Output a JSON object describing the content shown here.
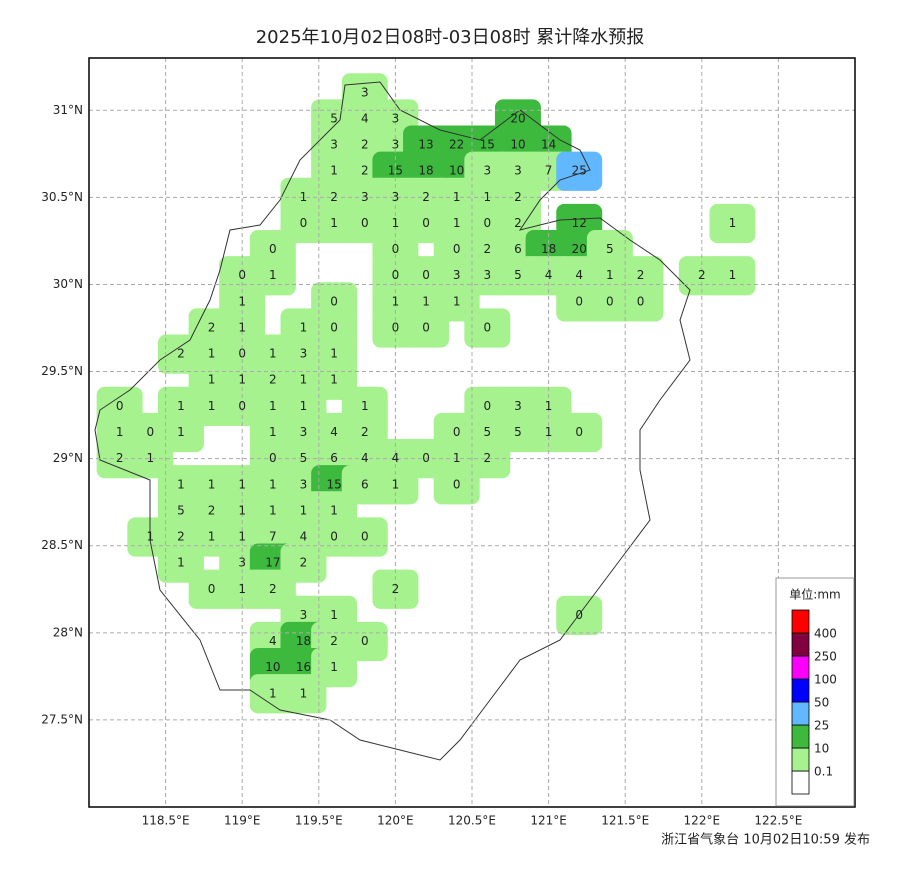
{
  "title": "2025年10月02日08时-03日08时 累计降水预报",
  "footer": "浙江省气象台 10月02日10:59 发布",
  "xlim": [
    118,
    123
  ],
  "ylim": [
    27,
    31.3
  ],
  "xticks": [
    {
      "value": 118.5,
      "label": "118.5°E"
    },
    {
      "value": 119,
      "label": "119°E"
    },
    {
      "value": 119.5,
      "label": "119.5°E"
    },
    {
      "value": 120,
      "label": "120°E"
    },
    {
      "value": 120.5,
      "label": "120.5°E"
    },
    {
      "value": 121,
      "label": "121°E"
    },
    {
      "value": 121.5,
      "label": "121.5°E"
    },
    {
      "value": 122,
      "label": "122°E"
    },
    {
      "value": 122.5,
      "label": "122.5°E"
    }
  ],
  "yticks": [
    {
      "value": 27.5,
      "label": "27.5°N"
    },
    {
      "value": 28,
      "label": "28°N"
    },
    {
      "value": 28.5,
      "label": "28.5°N"
    },
    {
      "value": 29,
      "label": "29°N"
    },
    {
      "value": 29.5,
      "label": "29.5°N"
    },
    {
      "value": 30,
      "label": "30°N"
    },
    {
      "value": 30.5,
      "label": "30.5°N"
    },
    {
      "value": 31,
      "label": "31°N"
    }
  ],
  "grid": true,
  "legend": {
    "title": "单位:mm",
    "levels": [
      0.1,
      10,
      25,
      50,
      100,
      250,
      400
    ],
    "colors": [
      "#ffffff",
      "#a6f28f",
      "#3dba3d",
      "#61b8ff",
      "#0000ff",
      "#fa00fa",
      "#800040",
      "#ff0000"
    ]
  },
  "stations": {
    "lons": [
      118.2,
      118.4,
      118.6,
      118.8,
      119.0,
      119.2,
      119.4,
      119.6,
      119.8,
      120.0,
      120.2,
      120.4,
      120.6,
      120.8,
      121.0,
      121.2,
      121.4,
      121.6,
      121.8,
      122.0,
      122.2
    ],
    "lats": [
      31.1,
      30.95,
      30.8,
      30.65,
      30.5,
      30.35,
      30.2,
      30.05,
      29.9,
      29.75,
      29.6,
      29.45,
      29.3,
      29.15,
      29.0,
      28.85,
      28.7,
      28.55,
      28.4,
      28.25,
      28.1,
      27.95,
      27.8,
      27.65
    ],
    "values": [
      [
        null,
        null,
        null,
        null,
        null,
        null,
        null,
        null,
        3,
        null,
        null,
        null,
        null,
        null,
        null,
        null,
        null,
        null,
        null,
        null,
        null
      ],
      [
        null,
        null,
        null,
        null,
        null,
        null,
        null,
        5,
        4,
        3,
        null,
        null,
        null,
        20,
        null,
        null,
        null,
        null,
        null,
        null,
        null
      ],
      [
        null,
        null,
        null,
        null,
        null,
        null,
        null,
        3,
        2,
        3,
        13,
        22,
        15,
        10,
        14,
        null,
        null,
        null,
        null,
        null,
        null
      ],
      [
        null,
        null,
        null,
        null,
        null,
        null,
        null,
        1,
        2,
        15,
        18,
        10,
        3,
        3,
        7,
        25,
        null,
        null,
        null,
        null,
        null
      ],
      [
        null,
        null,
        null,
        null,
        null,
        null,
        1,
        2,
        3,
        3,
        2,
        1,
        1,
        2,
        null,
        null,
        null,
        null,
        null,
        null,
        null
      ],
      [
        null,
        null,
        null,
        null,
        null,
        null,
        0,
        1,
        0,
        1,
        0,
        1,
        0,
        2,
        null,
        12,
        null,
        null,
        null,
        null,
        1
      ],
      [
        null,
        null,
        null,
        null,
        null,
        0,
        null,
        null,
        null,
        0,
        null,
        0,
        2,
        6,
        18,
        20,
        5,
        null,
        null,
        null,
        null
      ],
      [
        null,
        null,
        null,
        null,
        0,
        1,
        null,
        null,
        null,
        0,
        0,
        3,
        3,
        5,
        4,
        4,
        1,
        2,
        null,
        2,
        1
      ],
      [
        null,
        null,
        null,
        null,
        1,
        null,
        null,
        0,
        null,
        1,
        1,
        1,
        null,
        null,
        null,
        0,
        0,
        0,
        null,
        null,
        null
      ],
      [
        null,
        null,
        null,
        2,
        1,
        null,
        1,
        0,
        null,
        0,
        0,
        null,
        0,
        null,
        null,
        null,
        null,
        null,
        null,
        null,
        null
      ],
      [
        null,
        null,
        2,
        1,
        0,
        1,
        3,
        1,
        null,
        null,
        null,
        null,
        null,
        null,
        null,
        null,
        null,
        null,
        null,
        null,
        null
      ],
      [
        null,
        null,
        null,
        1,
        1,
        2,
        1,
        1,
        null,
        null,
        null,
        null,
        null,
        null,
        null,
        null,
        null,
        null,
        null,
        null,
        null
      ],
      [
        0,
        null,
        1,
        1,
        0,
        1,
        1,
        null,
        1,
        null,
        null,
        null,
        0,
        3,
        1,
        null,
        null,
        null,
        null,
        null,
        null
      ],
      [
        1,
        0,
        1,
        null,
        null,
        1,
        3,
        4,
        2,
        null,
        null,
        0,
        5,
        5,
        1,
        0,
        null,
        null,
        null,
        null,
        null
      ],
      [
        2,
        1,
        null,
        null,
        null,
        0,
        5,
        6,
        4,
        4,
        0,
        1,
        2,
        null,
        null,
        null,
        null,
        null,
        null,
        null,
        null
      ],
      [
        null,
        null,
        1,
        1,
        1,
        1,
        3,
        15,
        6,
        1,
        null,
        0,
        null,
        null,
        null,
        null,
        null,
        null,
        null,
        null,
        null
      ],
      [
        null,
        null,
        5,
        2,
        1,
        1,
        1,
        1,
        null,
        null,
        null,
        null,
        null,
        null,
        null,
        null,
        null,
        null,
        null,
        null,
        null
      ],
      [
        null,
        1,
        2,
        1,
        1,
        7,
        4,
        0,
        0,
        null,
        null,
        null,
        null,
        null,
        null,
        null,
        null,
        null,
        null,
        null,
        null
      ],
      [
        null,
        null,
        1,
        null,
        3,
        17,
        2,
        null,
        null,
        null,
        null,
        null,
        null,
        null,
        null,
        null,
        null,
        null,
        null,
        null,
        null
      ],
      [
        null,
        null,
        null,
        0,
        1,
        2,
        null,
        null,
        null,
        2,
        null,
        null,
        null,
        null,
        null,
        null,
        null,
        null,
        null,
        null,
        null
      ],
      [
        null,
        null,
        null,
        null,
        null,
        null,
        3,
        1,
        null,
        null,
        null,
        null,
        null,
        null,
        null,
        0,
        null,
        null,
        null,
        null,
        null
      ],
      [
        null,
        null,
        null,
        null,
        null,
        4,
        18,
        2,
        0,
        null,
        null,
        null,
        null,
        null,
        null,
        null,
        null,
        null,
        null,
        null,
        null
      ],
      [
        null,
        null,
        null,
        null,
        null,
        10,
        16,
        1,
        null,
        null,
        null,
        null,
        null,
        null,
        null,
        null,
        null,
        null,
        null,
        null,
        null
      ],
      [
        null,
        null,
        null,
        null,
        null,
        1,
        1,
        null,
        null,
        null,
        null,
        null,
        null,
        null,
        null,
        null,
        null,
        null,
        null,
        null,
        null
      ]
    ]
  }
}
